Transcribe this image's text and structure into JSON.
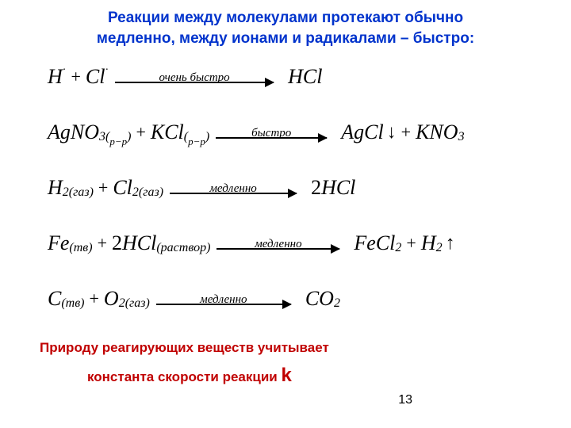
{
  "title": {
    "line1": "Реакции  между молекулами протекают обычно",
    "line2": "медленно, между ионами и радикалами – быстро:",
    "color": "#0033cc",
    "fontsize": 19
  },
  "reactions": [
    {
      "lhs_html": "H<span class='sup'>·</span> <span class='plus'>+</span> Cl<span class='sup'>·</span>",
      "arrow_label": "очень быстро",
      "arrow_width": 200,
      "rhs_html": "HCl"
    },
    {
      "lhs_html": "AgNO<span class='sub'>3(<span class='subsmall'>p−p</span>)</span> <span class='plus'>+</span> KCl<span class='sub'>(<span class='subsmall'>p−p</span>)</span>",
      "arrow_label": "быстро",
      "arrow_width": 140,
      "rhs_html": "AgCl <span class='downarrow'>↓</span><span class='plus'>+</span> KNO<span class='sub'>3</span>"
    },
    {
      "lhs_html": "H<span class='sub'>2(газ)</span> <span class='plus'>+</span> Cl<span class='sub'>2(газ)</span>",
      "arrow_label": "медленно",
      "arrow_width": 160,
      "rhs_html": "<span style='font-style:normal'>2</span>HCl"
    },
    {
      "lhs_html": "Fe<span class='sub'>(тв)</span> <span class='plus'>+</span> <span style='font-style:normal'>2</span>HCl<span class='sub'>(раствор)</span>",
      "arrow_label": "медленно",
      "arrow_width": 155,
      "rhs_html": "FeCl<span class='sub'>2</span> <span class='plus'>+</span> H<span class='sub'>2</span> <span class='uparrow'>↑</span>"
    },
    {
      "lhs_html": "C<span class='sub'>(тв)</span> <span class='plus'>+</span> O<span class='sub'>2(газ)</span>",
      "arrow_label": "медленно",
      "arrow_width": 170,
      "rhs_html": "CO<span class='sub'>2</span>"
    }
  ],
  "footer": {
    "line1": "Природу реагирующих веществ учитывает",
    "line2_prefix": "константа скорости реакции ",
    "k_symbol": "k",
    "color": "#c00000"
  },
  "page_number": "13"
}
